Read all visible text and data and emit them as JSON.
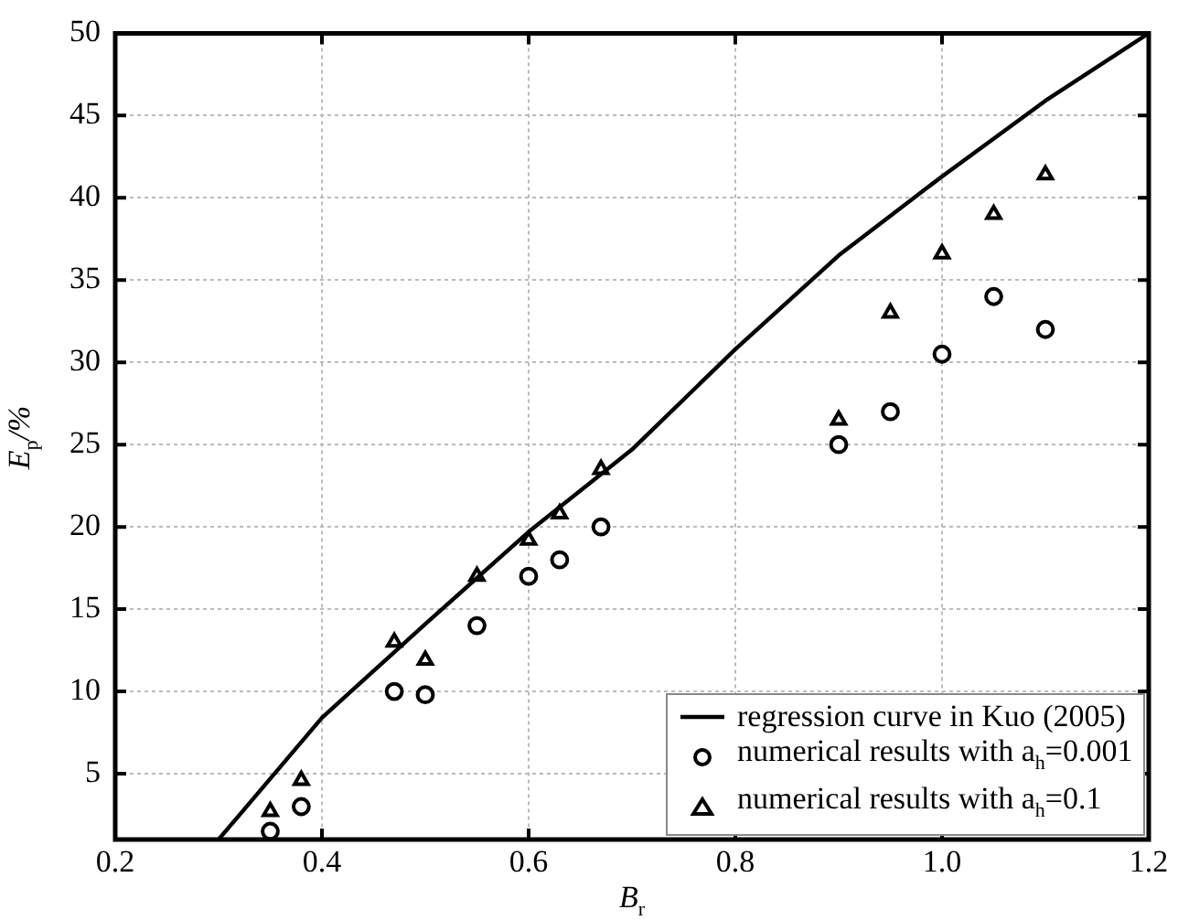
{
  "chart_data": {
    "type": "scatter",
    "xlabel": "B$_{r}$",
    "ylabel": "E$_{p}$/%",
    "xlim": [
      0.2,
      1.2
    ],
    "xticks": [
      {
        "value": 0.2,
        "label": "0.2"
      },
      {
        "value": 0.4,
        "label": "0.4"
      },
      {
        "value": 0.6,
        "label": "0.6"
      },
      {
        "value": 0.8,
        "label": "0.8"
      },
      {
        "value": 1.0,
        "label": "1.0"
      },
      {
        "value": 1.2,
        "label": "1.2"
      }
    ],
    "ylim": [
      1,
      50
    ],
    "yticks": [
      5,
      10,
      15,
      20,
      25,
      30,
      35,
      40,
      45,
      50
    ],
    "grid": true,
    "legend": "bottom right",
    "series": [
      {
        "name": "regression curve in Kuo (2005)",
        "type": "line",
        "color": "#000000",
        "marker": "none",
        "line_style": "solid",
        "x": [
          0.3,
          0.4,
          0.5,
          0.6,
          0.7,
          0.8,
          0.9,
          1.0,
          1.1,
          1.2
        ],
        "values": [
          1.0,
          8.4,
          14.1,
          19.7,
          24.7,
          30.8,
          36.5,
          41.3,
          45.9,
          50
        ]
      },
      {
        "name": "numerical results with a$_{h}$=0.001",
        "color": "#000000",
        "marker": "circle",
        "x": [
          0.35,
          0.38,
          0.47,
          0.5,
          0.55,
          0.6,
          0.63,
          0.67,
          0.9,
          0.95,
          1.0,
          1.05,
          1.1
        ],
        "values": [
          1.5,
          3,
          10,
          9.8,
          14,
          17,
          18,
          20,
          25,
          27,
          30.5,
          34,
          32
        ]
      },
      {
        "name": "numerical results with a$_{h}$=0.1",
        "color": "#000000",
        "marker": "triangle",
        "x": [
          0.35,
          0.38,
          0.47,
          0.5,
          0.55,
          0.6,
          0.63,
          0.67,
          0.9,
          0.95,
          1.0,
          1.05,
          1.1
        ],
        "values": [
          2.7,
          4.6,
          13,
          11.9,
          17,
          19.2,
          20.8,
          23.5,
          26.5,
          33,
          36.6,
          39,
          41.4
        ]
      }
    ]
  }
}
